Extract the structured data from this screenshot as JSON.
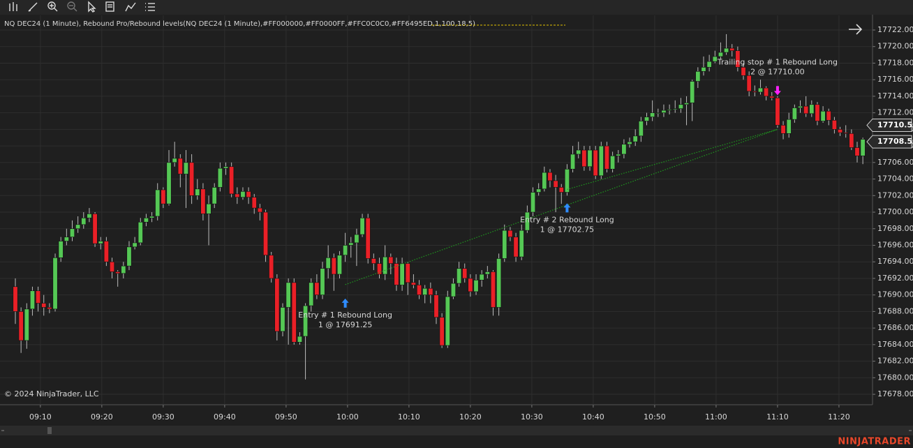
{
  "chart_data": {
    "type": "candlestick",
    "title": "NQ DEC24 (1 Minute), Rebound Pro/Rebound levels(NQ DEC24 (1 Minute),#FF000000,#FF0000FF,#FFC0C0C0,#FF6495ED,1,100,18,5)",
    "copyright": "© 2024 NinjaTrader, LLC",
    "brand": "NINJATRADER",
    "up_color": "#55c855",
    "down_color": "#ea2027",
    "grid": true,
    "xlim": [
      -2.7,
      150.7
    ],
    "ylim": [
      17676.74,
      17723.77
    ],
    "xticks": [
      {
        "value": 4.4,
        "label": "09:10"
      },
      {
        "value": 15.2,
        "label": "09:20"
      },
      {
        "value": 26,
        "label": "09:30"
      },
      {
        "value": 36.8,
        "label": "09:40"
      },
      {
        "value": 47.6,
        "label": "09:50"
      },
      {
        "value": 58.4,
        "label": "10:00"
      },
      {
        "value": 69.2,
        "label": "10:10"
      },
      {
        "value": 80,
        "label": "10:20"
      },
      {
        "value": 90.8,
        "label": "10:30"
      },
      {
        "value": 101.6,
        "label": "10:40"
      },
      {
        "value": 112.4,
        "label": "10:50"
      },
      {
        "value": 123.2,
        "label": "11:00"
      },
      {
        "value": 134,
        "label": "11:10"
      },
      {
        "value": 144.8,
        "label": "11:20"
      }
    ],
    "yticks": [
      {
        "value": 17678,
        "label": "17678.00"
      },
      {
        "value": 17680,
        "label": "17680.00"
      },
      {
        "value": 17682,
        "label": "17682.00"
      },
      {
        "value": 17684,
        "label": "17684.00"
      },
      {
        "value": 17686,
        "label": "17686.00"
      },
      {
        "value": 17688,
        "label": "17688.00"
      },
      {
        "value": 17690,
        "label": "17690.00"
      },
      {
        "value": 17692,
        "label": "17692.00"
      },
      {
        "value": 17694,
        "label": "17694.00"
      },
      {
        "value": 17696,
        "label": "17696.00"
      },
      {
        "value": 17698,
        "label": "17698.00"
      },
      {
        "value": 17700,
        "label": "17700.00"
      },
      {
        "value": 17702,
        "label": "17702.00"
      },
      {
        "value": 17704,
        "label": "17704.00"
      },
      {
        "value": 17706,
        "label": "17706.00"
      },
      {
        "value": 17708,
        "label": "17708.00"
      },
      {
        "value": 17710,
        "label": "17710.00"
      },
      {
        "value": 17712,
        "label": "17712.00"
      },
      {
        "value": 17714,
        "label": "17714.00"
      },
      {
        "value": 17716,
        "label": "17716.00"
      },
      {
        "value": 17718,
        "label": "17718.00"
      },
      {
        "value": 17720,
        "label": "17720.00"
      },
      {
        "value": 17722,
        "label": "17722.00"
      }
    ],
    "price_markers": [
      {
        "value": 17710.5,
        "label": "17710.50"
      },
      {
        "value": 17708.5,
        "label": "17708.50"
      }
    ],
    "trades": [
      {
        "entry_label": "Entry # 1 Rebound Long",
        "entry_detail": "1 @ 17691.25",
        "entry_price": 17691.25,
        "entry_index": 58,
        "exit_index": 134,
        "exit_price": 17710
      },
      {
        "entry_label": "Entry # 2 Rebound Long",
        "entry_detail": "1 @ 17702.75",
        "entry_price": 17702.75,
        "entry_index": 97,
        "exit_index": 134,
        "exit_price": 17710
      }
    ],
    "exit_label": "Trailing stop # 1 Rebound Long",
    "exit_detail": "2 @ 17710.00",
    "candles": [
      [
        17691,
        17692,
        17686.5,
        17688
      ],
      [
        17688,
        17688.5,
        17683,
        17684.5
      ],
      [
        17684.5,
        17689,
        17683.5,
        17688.3
      ],
      [
        17688.3,
        17691,
        17687.5,
        17690.5
      ],
      [
        17690.5,
        17691,
        17688,
        17689
      ],
      [
        17689,
        17690,
        17687.5,
        17688.5
      ],
      [
        17688.5,
        17689,
        17687.8,
        17688.3
      ],
      [
        17688.3,
        17695,
        17688,
        17694.5
      ],
      [
        17694.5,
        17697,
        17694,
        17696.5
      ],
      [
        17696.5,
        17698,
        17696,
        17697
      ],
      [
        17697,
        17699,
        17696.5,
        17698
      ],
      [
        17698,
        17699.5,
        17697.5,
        17698.5
      ],
      [
        17698.5,
        17700,
        17698,
        17699.3
      ],
      [
        17699.3,
        17700.5,
        17698.8,
        17699.8
      ],
      [
        17699.8,
        17700,
        17695.8,
        17696.2
      ],
      [
        17696.2,
        17697,
        17695.5,
        17696.5
      ],
      [
        17696.5,
        17697,
        17693.5,
        17694
      ],
      [
        17694,
        17694.5,
        17692,
        17692.8
      ],
      [
        17692.8,
        17693,
        17691,
        17692.6
      ],
      [
        17692.6,
        17694,
        17692,
        17693.5
      ],
      [
        17693.5,
        17696.5,
        17693,
        17695.8
      ],
      [
        17695.8,
        17697,
        17695.5,
        17696.3
      ],
      [
        17696.3,
        17699.3,
        17696,
        17698.8
      ],
      [
        17698.8,
        17699.8,
        17698.3,
        17699.3
      ],
      [
        17699.3,
        17700,
        17698.8,
        17699.5
      ],
      [
        17699.5,
        17703.5,
        17699,
        17702.7
      ],
      [
        17702.7,
        17703,
        17700.5,
        17701
      ],
      [
        17701,
        17707.5,
        17700.8,
        17706
      ],
      [
        17706,
        17708.5,
        17705.5,
        17706.5
      ],
      [
        17706.5,
        17707,
        17703,
        17704.6
      ],
      [
        17704.6,
        17707.5,
        17700.5,
        17706
      ],
      [
        17706,
        17707,
        17701,
        17702
      ],
      [
        17702,
        17704,
        17701.5,
        17702.8
      ],
      [
        17702.8,
        17703.5,
        17699,
        17699.8
      ],
      [
        17699.8,
        17702,
        17696,
        17701
      ],
      [
        17701,
        17703.5,
        17700.5,
        17703
      ],
      [
        17703,
        17706,
        17702.5,
        17705.3
      ],
      [
        17705.3,
        17706,
        17704.5,
        17705.5
      ],
      [
        17705.5,
        17706,
        17701.8,
        17702.2
      ],
      [
        17702.2,
        17703,
        17701,
        17701.8
      ],
      [
        17701.8,
        17703,
        17701.5,
        17702.5
      ],
      [
        17702.5,
        17703,
        17701,
        17701.8
      ],
      [
        17701.8,
        17702.2,
        17699.8,
        17700.5
      ],
      [
        17700.5,
        17701,
        17699,
        17700
      ],
      [
        17700,
        17700.3,
        17694,
        17694.8
      ],
      [
        17694.8,
        17695.2,
        17691.5,
        17692
      ],
      [
        17692,
        17692.5,
        17684.5,
        17685.6
      ],
      [
        17685.6,
        17689,
        17685,
        17688.5
      ],
      [
        17688.5,
        17692,
        17684,
        17691.5
      ],
      [
        17691.5,
        17692,
        17684,
        17684.3
      ],
      [
        17684.3,
        17685.5,
        17684,
        17685
      ],
      [
        17685,
        17689,
        17679.8,
        17688.7
      ],
      [
        17688.7,
        17692,
        17688,
        17691.5
      ],
      [
        17691.5,
        17692.5,
        17689.5,
        17690
      ],
      [
        17690,
        17694,
        17689.5,
        17693.2
      ],
      [
        17693.2,
        17696,
        17692,
        17694.5
      ],
      [
        17694.5,
        17695,
        17690.5,
        17692.5
      ],
      [
        17692.5,
        17695.3,
        17692,
        17694.8
      ],
      [
        17694.8,
        17697.5,
        17694,
        17696
      ],
      [
        17696,
        17697,
        17694.5,
        17696.3
      ],
      [
        17696.3,
        17698,
        17693.5,
        17697.3
      ],
      [
        17697.3,
        17699.8,
        17697,
        17699.3
      ],
      [
        17699.3,
        17699.8,
        17693.8,
        17694.4
      ],
      [
        17694.4,
        17695,
        17693,
        17693.8
      ],
      [
        17693.8,
        17694.5,
        17692,
        17692.5
      ],
      [
        17692.5,
        17696,
        17691.8,
        17694.6
      ],
      [
        17694.6,
        17695,
        17692.5,
        17693.8
      ],
      [
        17693.8,
        17694.5,
        17690.5,
        17691.2
      ],
      [
        17691.2,
        17694.5,
        17690.5,
        17693.8
      ],
      [
        17693.8,
        17694,
        17690,
        17691.5
      ],
      [
        17691.5,
        17692.5,
        17690.8,
        17691.2
      ],
      [
        17691.2,
        17691.8,
        17689.5,
        17690
      ],
      [
        17690,
        17691.2,
        17689,
        17690.8
      ],
      [
        17690.8,
        17691.5,
        17689,
        17690
      ],
      [
        17690,
        17690.5,
        17686.5,
        17687.3
      ],
      [
        17687.3,
        17687.8,
        17683.6,
        17683.9
      ],
      [
        17683.9,
        17690.5,
        17683.6,
        17689.8
      ],
      [
        17689.8,
        17692,
        17689.5,
        17691.4
      ],
      [
        17691.4,
        17694,
        17691,
        17693.2
      ],
      [
        17693.2,
        17693.8,
        17691.5,
        17692
      ],
      [
        17692,
        17692.5,
        17689.8,
        17690.4
      ],
      [
        17690.4,
        17692.5,
        17690,
        17691.8
      ],
      [
        17691.8,
        17693,
        17691,
        17692.5
      ],
      [
        17692.5,
        17693.5,
        17692,
        17692.8
      ],
      [
        17692.8,
        17693,
        17687.5,
        17688.5
      ],
      [
        17688.5,
        17695,
        17687.5,
        17694.4
      ],
      [
        17694.4,
        17698.5,
        17694,
        17697.8
      ],
      [
        17697.8,
        17698.2,
        17696.5,
        17697
      ],
      [
        17697,
        17697.5,
        17694,
        17694.6
      ],
      [
        17694.6,
        17698.5,
        17694.2,
        17697.8
      ],
      [
        17697.8,
        17700.8,
        17697.5,
        17700
      ],
      [
        17700,
        17703,
        17699.5,
        17702.4
      ],
      [
        17702.4,
        17703.5,
        17702,
        17702.8
      ],
      [
        17702.8,
        17705.5,
        17702.5,
        17704.8
      ],
      [
        17704.8,
        17705.2,
        17703,
        17703.8
      ],
      [
        17703.8,
        17704.5,
        17700,
        17703
      ],
      [
        17703,
        17703.4,
        17701,
        17702.4
      ],
      [
        17702.4,
        17705.8,
        17702,
        17705.2
      ],
      [
        17705.2,
        17708,
        17704.8,
        17707
      ],
      [
        17707,
        17708.5,
        17706.5,
        17707.5
      ],
      [
        17707.5,
        17708,
        17705,
        17705.5
      ],
      [
        17705.5,
        17708,
        17705,
        17707.5
      ],
      [
        17707.5,
        17708,
        17704,
        17704.4
      ],
      [
        17704.4,
        17708.5,
        17704,
        17708
      ],
      [
        17708,
        17708.5,
        17704.8,
        17705.2
      ],
      [
        17705.2,
        17707.3,
        17704.8,
        17706.8
      ],
      [
        17706.8,
        17707.5,
        17706,
        17707
      ],
      [
        17707,
        17708.8,
        17706.5,
        17708.2
      ],
      [
        17708.2,
        17709,
        17707.8,
        17708.5
      ],
      [
        17708.5,
        17710,
        17708,
        17709.2
      ],
      [
        17709.2,
        17711.5,
        17708.5,
        17711
      ],
      [
        17711,
        17712,
        17710.5,
        17711.5
      ],
      [
        17711.5,
        17713.5,
        17711,
        17712
      ],
      [
        17712,
        17712.5,
        17711.5,
        17712
      ],
      [
        17712,
        17713,
        17711.5,
        17712.3
      ],
      [
        17712.3,
        17713,
        17711.8,
        17712.4
      ],
      [
        17712.4,
        17713.5,
        17712,
        17712.5
      ],
      [
        17712.5,
        17713.8,
        17712,
        17713
      ],
      [
        17713,
        17714,
        17710.5,
        17713.2
      ],
      [
        17713.2,
        17716,
        17711,
        17715.8
      ],
      [
        17715.8,
        17717.5,
        17715,
        17717
      ],
      [
        17717,
        17718.8,
        17716.5,
        17717.5
      ],
      [
        17717.5,
        17719,
        17717,
        17718.2
      ],
      [
        17718.2,
        17719.5,
        17718,
        17718.8
      ],
      [
        17718.8,
        17720.5,
        17718.5,
        17719.3
      ],
      [
        17719.3,
        17721.5,
        17719,
        17719.8
      ],
      [
        17719.8,
        17720.3,
        17718.8,
        17719.5
      ],
      [
        17719.5,
        17720,
        17717,
        17717.5
      ],
      [
        17717.5,
        17718,
        17716,
        17716.5
      ],
      [
        17716.5,
        17717,
        17714,
        17714.6
      ],
      [
        17714.6,
        17715.3,
        17714,
        17714.5
      ],
      [
        17714.5,
        17716,
        17714.2,
        17715
      ],
      [
        17715,
        17715.2,
        17713.5,
        17714
      ],
      [
        17714,
        17714.5,
        17713.5,
        17713.8
      ],
      [
        17713.8,
        17714,
        17710.2,
        17710.5
      ],
      [
        17710.5,
        17711,
        17708.8,
        17709.5
      ],
      [
        17709.5,
        17712,
        17709,
        17711.2
      ],
      [
        17711.2,
        17713,
        17710.8,
        17712.6
      ],
      [
        17712.6,
        17713.5,
        17712,
        17712.8
      ],
      [
        17712.8,
        17714,
        17711.5,
        17711.9
      ],
      [
        17711.9,
        17713.5,
        17711.5,
        17713
      ],
      [
        17713,
        17713.3,
        17710.5,
        17711
      ],
      [
        17711,
        17712.8,
        17710.8,
        17712.2
      ],
      [
        17712.2,
        17712.5,
        17710.5,
        17711.1
      ],
      [
        17711.1,
        17711.5,
        17709.5,
        17710
      ],
      [
        17710,
        17710.3,
        17709.2,
        17709.6
      ],
      [
        17709.6,
        17710.5,
        17709,
        17709.5
      ],
      [
        17709.5,
        17710,
        17707.5,
        17707.8
      ],
      [
        17707.8,
        17708.5,
        17706,
        17706.8
      ],
      [
        17706.8,
        17709,
        17705.8,
        17708.8
      ]
    ]
  }
}
